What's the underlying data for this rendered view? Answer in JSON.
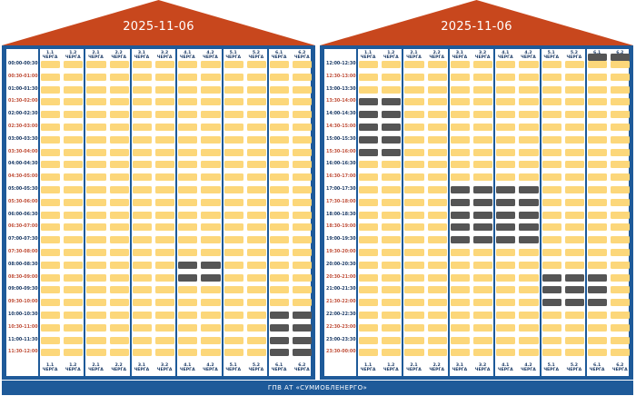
{
  "footer": "ГПВ АТ «СУМИОБЛЕНЕРГО»",
  "colors": {
    "on": "#fcd77a",
    "off": "#555555",
    "frame": "#1e5a99",
    "roof": "#c8471d"
  },
  "groups": [
    {
      "num": "1.1",
      "label": "ЧЕРГА"
    },
    {
      "num": "1.2",
      "label": "ЧЕРГА"
    },
    {
      "num": "2.1",
      "label": "ЧЕРГА"
    },
    {
      "num": "2.2",
      "label": "ЧЕРГА"
    },
    {
      "num": "3.1",
      "label": "ЧЕРГА"
    },
    {
      "num": "3.2",
      "label": "ЧЕРГА"
    },
    {
      "num": "4.1",
      "label": "ЧЕРГА"
    },
    {
      "num": "4.2",
      "label": "ЧЕРГА"
    },
    {
      "num": "5.1",
      "label": "ЧЕРГА"
    },
    {
      "num": "5.2",
      "label": "ЧЕРГА"
    },
    {
      "num": "6.1",
      "label": "ЧЕРГА"
    },
    {
      "num": "6.2",
      "label": "ЧЕРГА"
    }
  ],
  "panels": [
    {
      "date": "2025-11-06",
      "times": [
        "00:00-00:30",
        "00:30-01:00",
        "01:00-01:30",
        "01:30-02:00",
        "02:00-02:30",
        "02:30-03:00",
        "03:00-03:30",
        "03:30-04:00",
        "04:00-04:30",
        "04:30-05:00",
        "05:00-05:30",
        "05:30-06:00",
        "06:00-06:30",
        "06:30-07:00",
        "07:00-07:30",
        "07:30-08:00",
        "08:00-08:30",
        "08:30-09:00",
        "09:00-09:30",
        "09:30-10:00",
        "10:00-10:30",
        "10:30-11:00",
        "11:00-11:30",
        "11:30-12:00"
      ],
      "outages": [
        {
          "group": "4.1",
          "slots": [
            16,
            17
          ]
        },
        {
          "group": "4.2",
          "slots": [
            16,
            17
          ]
        },
        {
          "group": "6.1",
          "slots": [
            20,
            21,
            22,
            23
          ]
        },
        {
          "group": "6.2",
          "slots": [
            20,
            21,
            22,
            23
          ]
        }
      ]
    },
    {
      "date": "2025-11-06",
      "times": [
        "12:00-12:30",
        "12:30-13:00",
        "13:00-13:30",
        "13:30-14:00",
        "14:00-14:30",
        "14:30-15:00",
        "15:00-15:30",
        "15:30-16:00",
        "16:00-16:30",
        "16:30-17:00",
        "17:00-17:30",
        "17:30-18:00",
        "18:00-18:30",
        "18:30-19:00",
        "19:00-19:30",
        "19:30-20:00",
        "20:00-20:30",
        "20:30-21:00",
        "21:00-21:30",
        "21:30-22:00",
        "22:00-22:30",
        "22:30-23:00",
        "23:00-23:30",
        "23:30-00:00"
      ],
      "outages": [
        {
          "group": "1.1",
          "slots": [
            3,
            4,
            5,
            6,
            7
          ]
        },
        {
          "group": "1.2",
          "slots": [
            3,
            4,
            5,
            6,
            7
          ]
        },
        {
          "group": "3.1",
          "slots": [
            10,
            11,
            12,
            13,
            14
          ]
        },
        {
          "group": "3.2",
          "slots": [
            10,
            11,
            12,
            13,
            14
          ]
        },
        {
          "group": "4.1",
          "slots": [
            10,
            11,
            12,
            13,
            14
          ]
        },
        {
          "group": "4.2",
          "slots": [
            10,
            11,
            12,
            13,
            14
          ]
        },
        {
          "group": "5.1",
          "slots": [
            17,
            18,
            19
          ]
        },
        {
          "group": "5.2",
          "slots": [
            17,
            18,
            19
          ]
        },
        {
          "group": "6.1",
          "slots": [
            17,
            18,
            19
          ]
        },
        {
          "group": "6.1",
          "slots": [
            -1
          ]
        },
        {
          "group": "6.2",
          "slots": [
            -1
          ]
        }
      ]
    }
  ]
}
